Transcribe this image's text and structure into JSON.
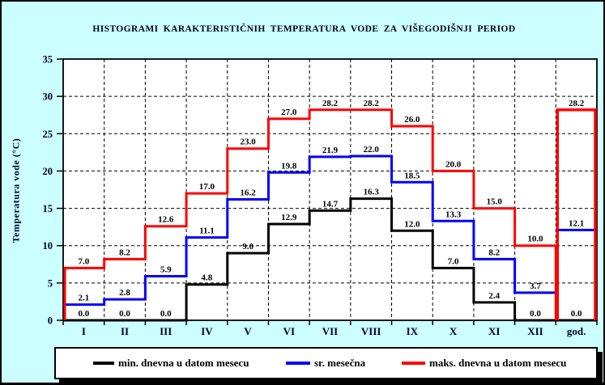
{
  "window": {
    "background_color": "#CCFFFF",
    "plot_background_color": "#FFFFFF"
  },
  "chart_data": {
    "type": "bar",
    "subtype": "step-histogram",
    "title": "HISTOGRAMI KARAKTERISTIČNIH TEMPERATURA VODE ZA VIŠEGODIŠNJI PERIOD",
    "xlabel": "",
    "ylabel": "Temperatura vode (°C)",
    "ylim": [
      0,
      35
    ],
    "ytick_step": 5,
    "yticks": [
      0,
      5,
      10,
      15,
      20,
      25,
      30,
      35
    ],
    "grid": "dashed",
    "legend_position": "bottom",
    "categories": [
      "I",
      "II",
      "III",
      "IV",
      "V",
      "VI",
      "VII",
      "VIII",
      "IX",
      "X",
      "XI",
      "XII",
      "god."
    ],
    "series": [
      {
        "name": "min. dnevna u datom mesecu",
        "color": "#000000",
        "values": [
          0.0,
          0.0,
          0.0,
          4.8,
          9.0,
          12.9,
          14.7,
          16.3,
          12.0,
          7.0,
          2.4,
          0.0,
          0.0
        ]
      },
      {
        "name": "sr. mesečna",
        "color": "#0000FF",
        "values": [
          2.1,
          2.8,
          5.9,
          11.1,
          16.2,
          19.8,
          21.9,
          22.0,
          18.5,
          13.3,
          8.2,
          3.7,
          12.1
        ]
      },
      {
        "name": "maks. dnevna u datom mesecu",
        "color": "#FF0000",
        "values": [
          7.0,
          8.2,
          12.6,
          17.0,
          23.0,
          27.0,
          28.2,
          28.2,
          26.0,
          20.0,
          15.0,
          10.0,
          28.2
        ]
      }
    ],
    "annotation_note": "yearly column (god.) for maks. series is drawn as a full-height open box"
  },
  "colors": {
    "axis_text": "#000033",
    "value_label": "#000000",
    "gridline": "#000000",
    "border": "#000000"
  }
}
